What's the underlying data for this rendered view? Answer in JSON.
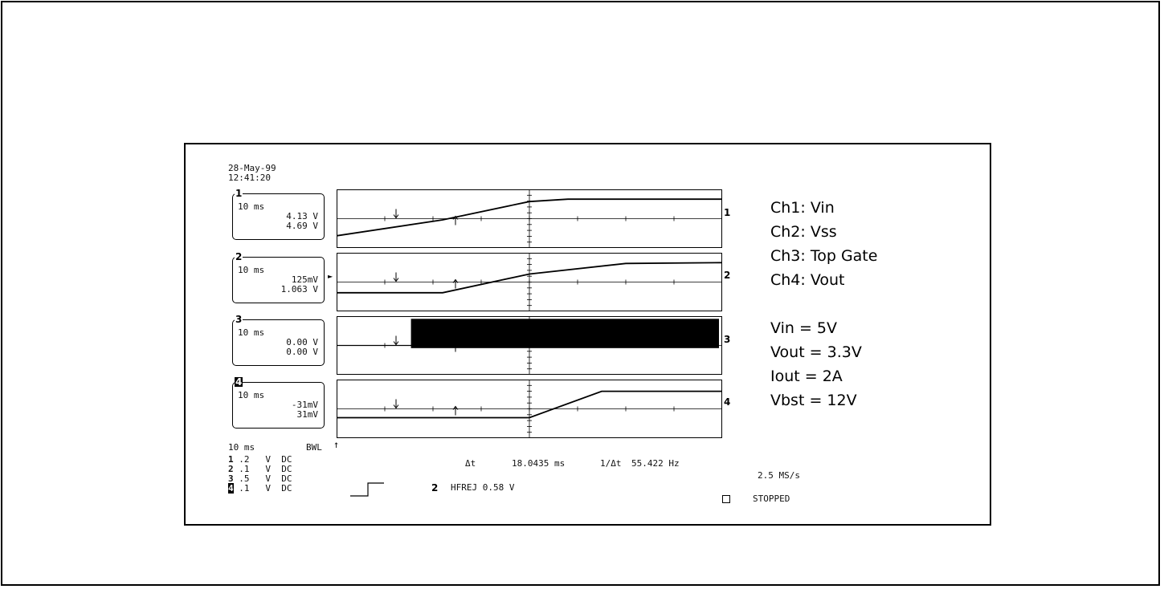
{
  "scope": {
    "date": "28-May-99",
    "time": "12:41:20",
    "channels": [
      {
        "num": "1",
        "timebase": "10 ms",
        "v1": "4.13 V",
        "v2": "4.69 V",
        "scale": ".2",
        "unit": "V",
        "coupling": "DC"
      },
      {
        "num": "2",
        "timebase": "10 ms",
        "v1": "125mV",
        "v2": "1.063 V",
        "scale": ".1",
        "unit": "V",
        "coupling": "DC"
      },
      {
        "num": "3",
        "timebase": "10 ms",
        "v1": "0.00 V",
        "v2": "0.00 V",
        "scale": ".5",
        "unit": "V",
        "coupling": "DC"
      },
      {
        "num": "4",
        "timebase": "10 ms",
        "v1": "-31mV",
        "v2": "31mV",
        "scale": ".1",
        "unit": "V",
        "coupling": "DC"
      }
    ],
    "bottom": {
      "timebase": "10 ms",
      "bwl": "BWL",
      "delta_t_label": "Δt",
      "delta_t": "18.0435 ms",
      "inv_label": "1/Δt",
      "freq": "55.422 Hz",
      "trigger_channel": "2",
      "trigger": "HFREJ 0.58 V",
      "sample_rate": "2.5 MS/s",
      "status": "STOPPED"
    },
    "legend": [
      "Ch1: Vin",
      "Ch2: Vss",
      "Ch3: Top Gate",
      "Ch4: Vout"
    ],
    "conditions": [
      "Vin = 5V",
      "Vout = 3.3V",
      "Iout = 2A",
      "Vbst = 12V"
    ]
  },
  "chart_data": {
    "type": "line",
    "title": "",
    "xlabel": "",
    "ylabel": "",
    "x_unit": "ms",
    "time_per_div": 10,
    "cursor1_ms": -18,
    "cursor2_ms": 0,
    "series": [
      {
        "name": "Ch1: Vin",
        "x": [
          -40,
          -18,
          0,
          8,
          40
        ],
        "y": [
          4.4,
          4.53,
          4.68,
          4.7,
          4.7
        ]
      },
      {
        "name": "Ch2: Vss",
        "x": [
          -40,
          -18,
          0,
          20,
          40
        ],
        "y": [
          0.95,
          0.95,
          1.02,
          1.06,
          1.063
        ]
      },
      {
        "name": "Ch3: Top Gate",
        "x": [
          -40,
          0,
          0.1,
          40
        ],
        "y": [
          0,
          0,
          0.5,
          0.5
        ]
      },
      {
        "name": "Ch4: Vout",
        "x": [
          -40,
          -18,
          0,
          15,
          40
        ],
        "y": [
          -0.015,
          -0.015,
          -0.015,
          0.03,
          0.03
        ]
      }
    ]
  }
}
